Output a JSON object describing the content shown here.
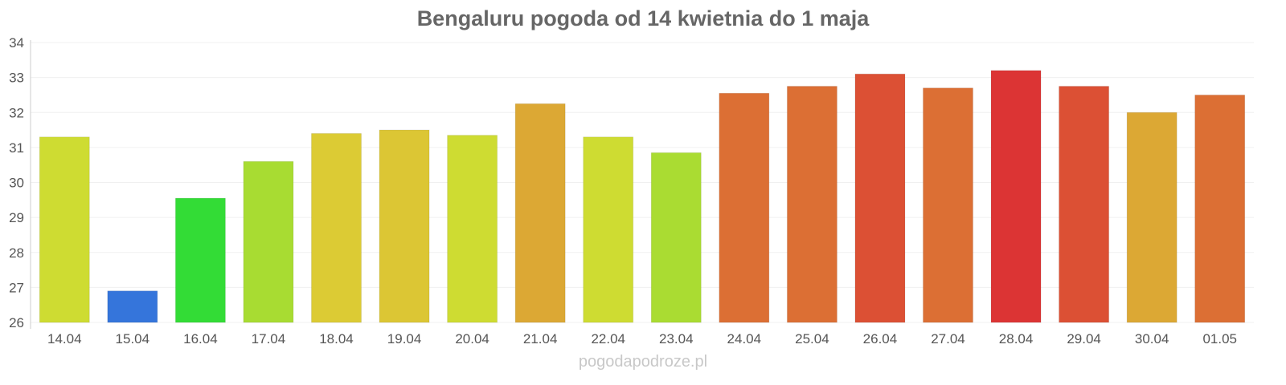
{
  "chart_data": {
    "type": "bar",
    "title": "Bengaluru pogoda od 14 kwietnia do 1 maja",
    "xlabel": "",
    "ylabel": "",
    "ylim": [
      26,
      34
    ],
    "yticks": [
      26,
      27,
      28,
      29,
      30,
      31,
      32,
      33,
      34
    ],
    "grid": true,
    "categories": [
      "14.04",
      "15.04",
      "16.04",
      "17.04",
      "18.04",
      "19.04",
      "20.04",
      "21.04",
      "22.04",
      "23.04",
      "24.04",
      "25.04",
      "26.04",
      "27.04",
      "28.04",
      "29.04",
      "30.04",
      "01.05"
    ],
    "values": [
      31.3,
      26.9,
      29.55,
      30.6,
      31.4,
      31.5,
      31.35,
      32.25,
      31.3,
      30.85,
      32.55,
      32.75,
      33.1,
      32.7,
      33.2,
      32.75,
      32.0,
      32.5
    ],
    "colors": [
      "#cedc32",
      "#3575db",
      "#33dc36",
      "#a8dc32",
      "#dccb34",
      "#dcc634",
      "#cedc32",
      "#dca834",
      "#cedc32",
      "#aadc32",
      "#dc6f34",
      "#dc6f34",
      "#dc5034",
      "#dc6f34",
      "#dc3434",
      "#dc5034",
      "#dca834",
      "#dc6f34"
    ]
  },
  "watermark": "pogodapodroze.pl"
}
